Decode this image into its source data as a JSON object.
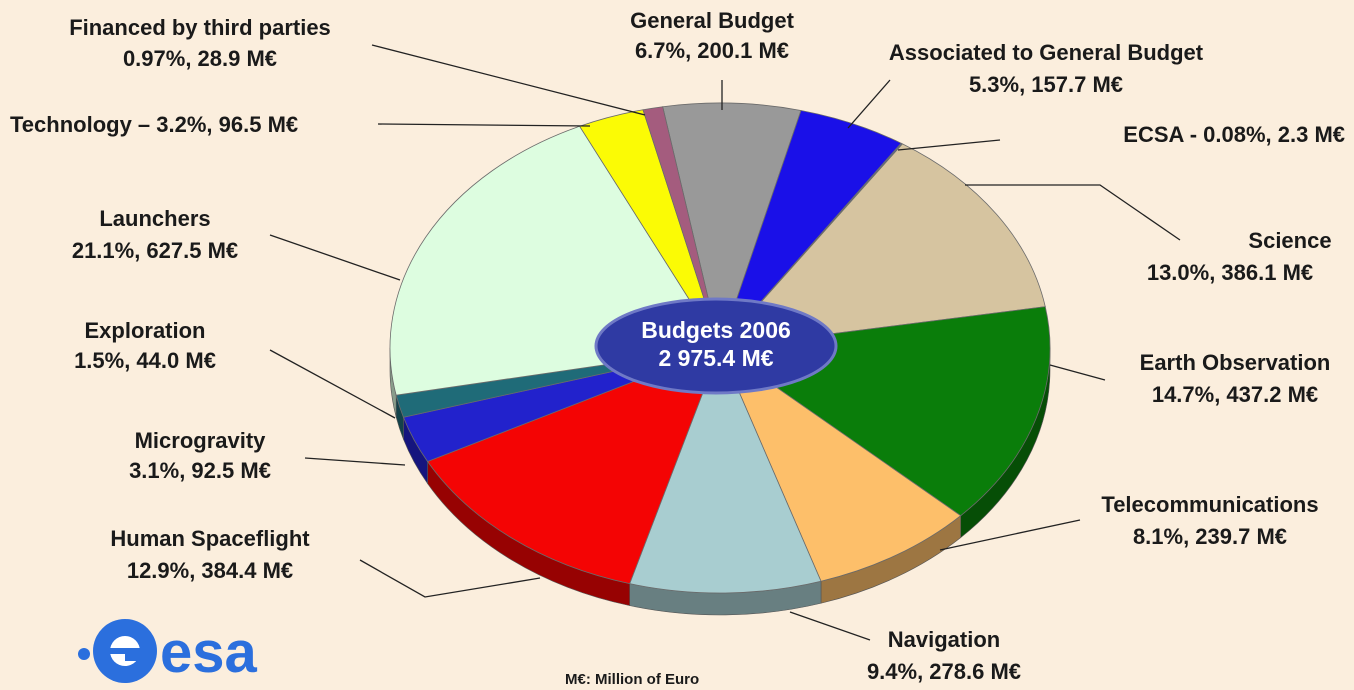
{
  "chart_data": {
    "type": "pie",
    "center_label": {
      "line1": "Budgets 2006",
      "line2": "2 975.4 M€"
    },
    "total": 2975.4,
    "unit": "M€",
    "slices": [
      {
        "name": "General Budget",
        "percent": "6.7%",
        "value": 200.1,
        "label": "6.7%, 200.1 M€",
        "color": "#999999"
      },
      {
        "name": "Associated to General Budget",
        "percent": "5.3%",
        "value": 157.7,
        "label": "5.3%, 157.7 M€",
        "color": "#1a10e8"
      },
      {
        "name": "ECSA",
        "percent": "0.08%",
        "value": 2.3,
        "label": "ECSA - 0.08%, 2.3 M€",
        "color": "#5a6f96"
      },
      {
        "name": "Science",
        "percent": "13.0%",
        "value": 386.1,
        "label": "13.0%, 386.1 M€",
        "color": "#d6c4a0"
      },
      {
        "name": "Earth Observation",
        "percent": "14.7%",
        "value": 437.2,
        "label": "14.7%, 437.2 M€",
        "color": "#0a7d0a"
      },
      {
        "name": "Telecommunications",
        "percent": "8.1%",
        "value": 239.7,
        "label": "8.1%, 239.7 M€",
        "color": "#fdbf6a"
      },
      {
        "name": "Navigation",
        "percent": "9.4%",
        "value": 278.6,
        "label": "9.4%, 278.6 M€",
        "color": "#a8cdd0"
      },
      {
        "name": "Human Spaceflight",
        "percent": "12.9%",
        "value": 384.4,
        "label": "12.9%, 384.4 M€",
        "color": "#f40404"
      },
      {
        "name": "Microgravity",
        "percent": "3.1%",
        "value": 92.5,
        "label": "3.1%, 92.5 M€",
        "color": "#2222cc"
      },
      {
        "name": "Exploration",
        "percent": "1.5%",
        "value": 44.0,
        "label": "1.5%, 44.0 M€",
        "color": "#1f6b78"
      },
      {
        "name": "Launchers",
        "percent": "21.1%",
        "value": 627.5,
        "label": "21.1%, 627.5 M€",
        "color": "#ddfde0"
      },
      {
        "name": "Technology",
        "percent": "3.2%",
        "value": 96.5,
        "label": "Technology – 3.2%, 96.5 M€",
        "color": "#fbfb05"
      },
      {
        "name": "Financed by third parties",
        "percent": "0.97%",
        "value": 28.9,
        "label": "0.97%, 28.9 M€",
        "color": "#a45c7e"
      }
    ]
  },
  "footnote": "M€: Million of Euro",
  "logo": {
    "text": "esa",
    "icon": "esa-logo-icon",
    "color": "#2b6fdd"
  }
}
